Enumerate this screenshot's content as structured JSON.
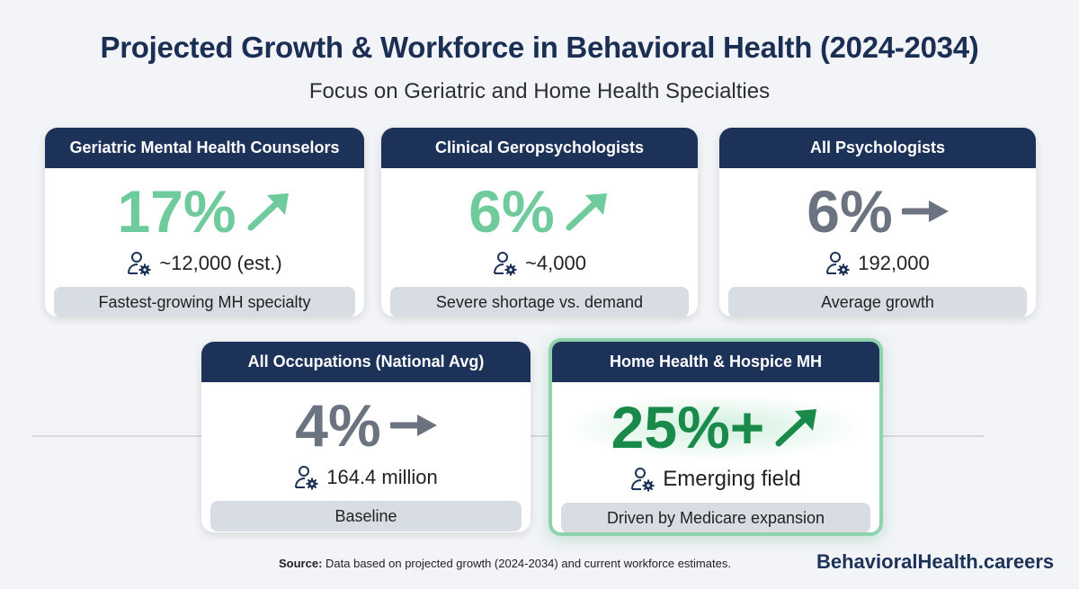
{
  "title": "Projected Growth & Workforce in Behavioral Health (2024-2034)",
  "subtitle": "Focus on Geriatric and Home Health Specialties",
  "cards": [
    {
      "header": "Geriatric Mental Health Counselors",
      "growth": "17%",
      "trend": "up",
      "workforce": "~12,000 (est.)",
      "note": "Fastest-growing MH specialty",
      "color": "#6fcb9b"
    },
    {
      "header": "Clinical Geropsychologists",
      "growth": "6%",
      "trend": "up",
      "workforce": "~4,000",
      "note": "Severe shortage vs. demand",
      "color": "#6fcb9b"
    },
    {
      "header": "All Psychologists",
      "growth": "6%",
      "trend": "flat",
      "workforce": "192,000",
      "note": "Average growth",
      "color": "#6b7280"
    },
    {
      "header": "All Occupations (National Avg)",
      "growth": "4%",
      "trend": "flat",
      "workforce": "164.4 million",
      "note": "Baseline",
      "color": "#6b7280"
    },
    {
      "header": "Home Health & Hospice MH",
      "growth": "25%+",
      "trend": "up",
      "workforce": "Emerging field",
      "note": "Driven by Medicare expansion",
      "color": "#1a8a4a"
    }
  ],
  "footer": {
    "source_label": "Source:",
    "source_text": " Data based on projected growth (2024-2034) and current workforce estimates.",
    "brand": "BehavioralHealth.careers"
  }
}
